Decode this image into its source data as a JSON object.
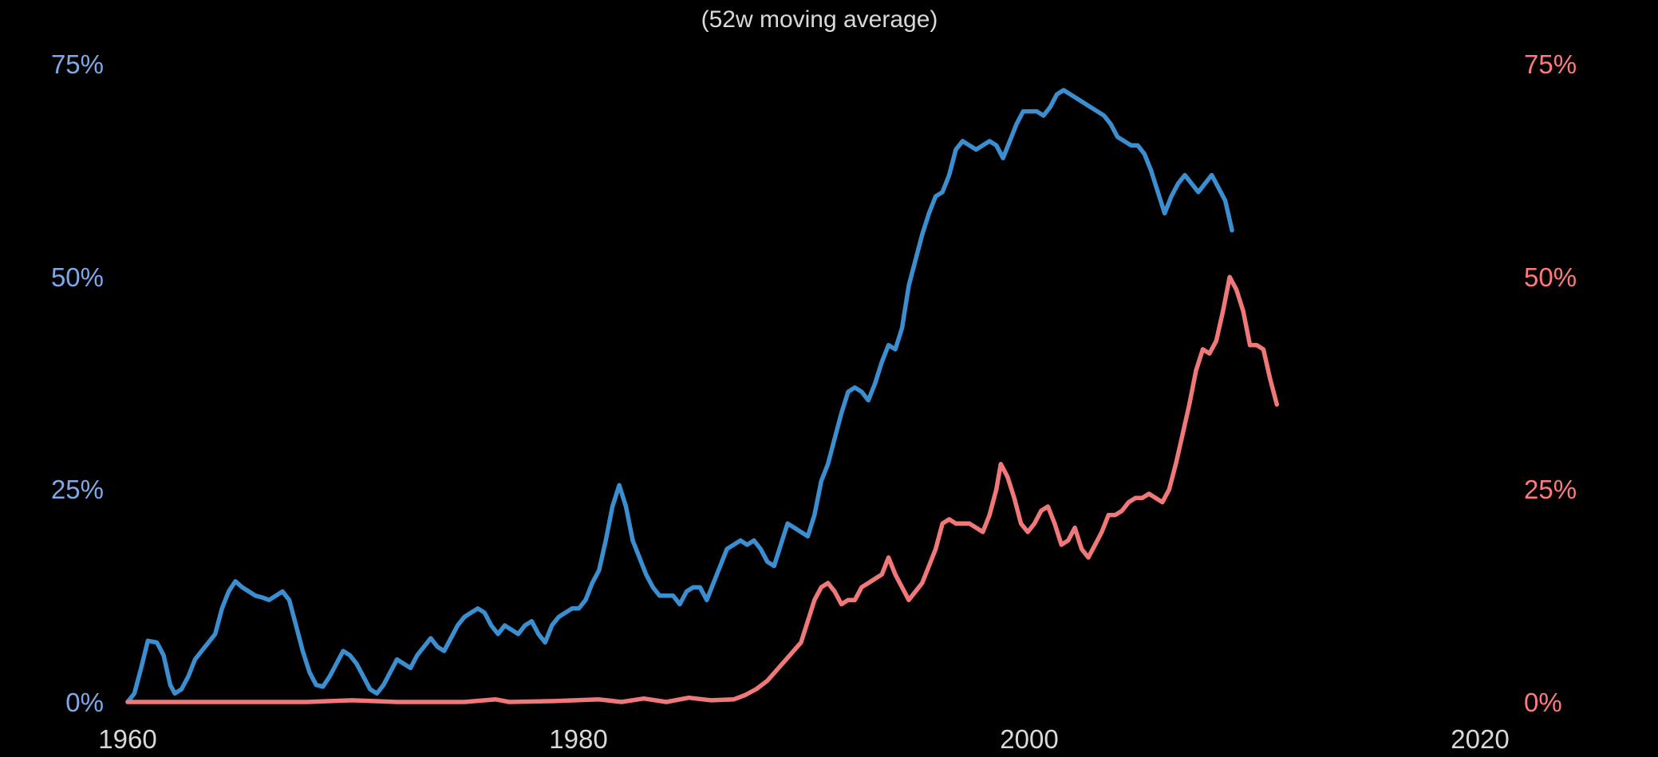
{
  "chart_data": {
    "type": "line",
    "title": "",
    "subtitle": "(52w moving average)",
    "xlabel": "",
    "ylabel": "",
    "xlim": [
      1960,
      2021
    ],
    "ylim": [
      0,
      75
    ],
    "grid": false,
    "legend": "none",
    "x_ticks": [
      {
        "value": 1960,
        "label": "1960"
      },
      {
        "value": 1980,
        "label": "1980"
      },
      {
        "value": 2000,
        "label": "2000"
      },
      {
        "value": 2020,
        "label": "2020"
      }
    ],
    "y_ticks_left": [
      {
        "value": 0,
        "label": "0%"
      },
      {
        "value": 25,
        "label": "25%"
      },
      {
        "value": 50,
        "label": "50%"
      },
      {
        "value": 75,
        "label": "75%"
      }
    ],
    "y_ticks_right": [
      {
        "value": 0,
        "label": "0%"
      },
      {
        "value": 25,
        "label": "25%"
      },
      {
        "value": 50,
        "label": "50%"
      },
      {
        "value": 75,
        "label": "75%"
      }
    ],
    "colors": {
      "blue_axis": "#7fa8e6",
      "red_axis": "#ff7a7a",
      "blue_line": "#3b8ed0",
      "red_line": "#f07878",
      "text": "#d9d9d9",
      "background": "#000000"
    },
    "series": [
      {
        "color": "#3b8ed0",
        "axis": "left",
        "points": [
          [
            1960.0,
            0
          ],
          [
            1960.3,
            1
          ],
          [
            1960.6,
            4
          ],
          [
            1960.9,
            7.2
          ],
          [
            1961.3,
            7
          ],
          [
            1961.6,
            5.5
          ],
          [
            1961.9,
            2
          ],
          [
            1962.1,
            1
          ],
          [
            1962.4,
            1.5
          ],
          [
            1962.7,
            3
          ],
          [
            1963.0,
            5
          ],
          [
            1963.3,
            6
          ],
          [
            1963.6,
            7
          ],
          [
            1963.9,
            8
          ],
          [
            1964.2,
            11
          ],
          [
            1964.5,
            13
          ],
          [
            1964.8,
            14.2
          ],
          [
            1965.1,
            13.5
          ],
          [
            1965.4,
            13
          ],
          [
            1965.7,
            12.5
          ],
          [
            1966.0,
            12.3
          ],
          [
            1966.3,
            12
          ],
          [
            1966.6,
            12.5
          ],
          [
            1966.9,
            13
          ],
          [
            1967.2,
            12
          ],
          [
            1967.5,
            9
          ],
          [
            1967.8,
            6
          ],
          [
            1968.1,
            3.5
          ],
          [
            1968.4,
            2
          ],
          [
            1968.7,
            1.8
          ],
          [
            1969.0,
            3
          ],
          [
            1969.3,
            4.5
          ],
          [
            1969.6,
            6
          ],
          [
            1969.9,
            5.5
          ],
          [
            1970.2,
            4.5
          ],
          [
            1970.5,
            3
          ],
          [
            1970.8,
            1.5
          ],
          [
            1971.1,
            1
          ],
          [
            1971.4,
            2
          ],
          [
            1971.7,
            3.5
          ],
          [
            1972.0,
            5
          ],
          [
            1972.3,
            4.5
          ],
          [
            1972.6,
            4
          ],
          [
            1972.9,
            5.5
          ],
          [
            1973.2,
            6.5
          ],
          [
            1973.5,
            7.5
          ],
          [
            1973.8,
            6.5
          ],
          [
            1974.1,
            6
          ],
          [
            1974.4,
            7.5
          ],
          [
            1974.7,
            9
          ],
          [
            1975.0,
            10
          ],
          [
            1975.3,
            10.5
          ],
          [
            1975.6,
            11
          ],
          [
            1975.9,
            10.5
          ],
          [
            1976.2,
            9
          ],
          [
            1976.5,
            8
          ],
          [
            1976.8,
            9
          ],
          [
            1977.1,
            8.5
          ],
          [
            1977.4,
            8
          ],
          [
            1977.7,
            9
          ],
          [
            1978.0,
            9.5
          ],
          [
            1978.3,
            8
          ],
          [
            1978.6,
            7
          ],
          [
            1978.9,
            9
          ],
          [
            1979.2,
            10
          ],
          [
            1979.5,
            10.5
          ],
          [
            1979.8,
            11
          ],
          [
            1980.1,
            11
          ],
          [
            1980.4,
            12
          ],
          [
            1980.7,
            14
          ],
          [
            1981.0,
            15.5
          ],
          [
            1981.3,
            19
          ],
          [
            1981.6,
            23
          ],
          [
            1981.9,
            25.5
          ],
          [
            1982.2,
            23
          ],
          [
            1982.5,
            19
          ],
          [
            1982.8,
            17
          ],
          [
            1983.1,
            15
          ],
          [
            1983.4,
            13.5
          ],
          [
            1983.7,
            12.5
          ],
          [
            1984.0,
            12.5
          ],
          [
            1984.3,
            12.5
          ],
          [
            1984.6,
            11.5
          ],
          [
            1984.9,
            13
          ],
          [
            1985.2,
            13.5
          ],
          [
            1985.5,
            13.5
          ],
          [
            1985.8,
            12
          ],
          [
            1986.1,
            14
          ],
          [
            1986.4,
            16
          ],
          [
            1986.7,
            18
          ],
          [
            1987.0,
            18.5
          ],
          [
            1987.3,
            19
          ],
          [
            1987.6,
            18.5
          ],
          [
            1987.9,
            19
          ],
          [
            1988.2,
            18
          ],
          [
            1988.5,
            16.5
          ],
          [
            1988.8,
            16
          ],
          [
            1989.1,
            18.5
          ],
          [
            1989.4,
            21
          ],
          [
            1989.7,
            20.5
          ],
          [
            1990.0,
            20
          ],
          [
            1990.3,
            19.5
          ],
          [
            1990.6,
            22
          ],
          [
            1990.9,
            26
          ],
          [
            1991.2,
            28
          ],
          [
            1991.5,
            31
          ],
          [
            1991.8,
            34
          ],
          [
            1992.1,
            36.5
          ],
          [
            1992.4,
            37
          ],
          [
            1992.7,
            36.5
          ],
          [
            1993.0,
            35.5
          ],
          [
            1993.3,
            37.5
          ],
          [
            1993.6,
            40
          ],
          [
            1993.9,
            42
          ],
          [
            1994.2,
            41.5
          ],
          [
            1994.5,
            44
          ],
          [
            1994.8,
            49
          ],
          [
            1995.1,
            52
          ],
          [
            1995.4,
            55
          ],
          [
            1995.7,
            57.5
          ],
          [
            1996.0,
            59.5
          ],
          [
            1996.3,
            60
          ],
          [
            1996.6,
            62
          ],
          [
            1996.9,
            65
          ],
          [
            1997.2,
            66
          ],
          [
            1997.5,
            65.5
          ],
          [
            1997.8,
            65
          ],
          [
            1998.1,
            65.5
          ],
          [
            1998.4,
            66
          ],
          [
            1998.7,
            65.5
          ],
          [
            1999.0,
            64
          ],
          [
            1999.3,
            66
          ],
          [
            1999.6,
            68
          ],
          [
            1999.9,
            69.5
          ],
          [
            2000.2,
            69.5
          ],
          [
            2000.5,
            69.5
          ],
          [
            2000.8,
            69
          ],
          [
            2001.1,
            70
          ],
          [
            2001.4,
            71.5
          ],
          [
            2001.7,
            72
          ],
          [
            2002.0,
            71.5
          ],
          [
            2002.3,
            71
          ],
          [
            2002.6,
            70.5
          ],
          [
            2002.9,
            70
          ],
          [
            2003.2,
            69.5
          ],
          [
            2003.5,
            69
          ],
          [
            2003.8,
            68
          ],
          [
            2004.1,
            66.5
          ],
          [
            2004.4,
            66
          ],
          [
            2004.7,
            65.5
          ],
          [
            2005.0,
            65.5
          ],
          [
            2005.3,
            64.5
          ],
          [
            2005.6,
            62.5
          ],
          [
            2005.9,
            60
          ],
          [
            2006.2,
            57.5
          ],
          [
            2006.5,
            59.5
          ],
          [
            2006.8,
            61
          ],
          [
            2007.1,
            62
          ],
          [
            2007.4,
            61
          ],
          [
            2007.7,
            60
          ],
          [
            2008.0,
            61
          ],
          [
            2008.3,
            62
          ],
          [
            2008.6,
            60.5
          ],
          [
            2008.9,
            59
          ],
          [
            2009.2,
            55.5
          ]
        ]
      },
      {
        "color": "#f07878",
        "axis": "right",
        "points": [
          [
            1960.0,
            0
          ],
          [
            1964.0,
            0
          ],
          [
            1968.0,
            0
          ],
          [
            1970.0,
            0.2
          ],
          [
            1972.0,
            0
          ],
          [
            1975.0,
            0
          ],
          [
            1976.4,
            0.3
          ],
          [
            1977.0,
            0
          ],
          [
            1979.0,
            0.1
          ],
          [
            1981.0,
            0.3
          ],
          [
            1982.0,
            0
          ],
          [
            1983.0,
            0.4
          ],
          [
            1984.0,
            0
          ],
          [
            1985.0,
            0.5
          ],
          [
            1986.0,
            0.2
          ],
          [
            1987.0,
            0.3
          ],
          [
            1987.5,
            0.8
          ],
          [
            1988.0,
            1.5
          ],
          [
            1988.5,
            2.5
          ],
          [
            1989.0,
            4
          ],
          [
            1989.5,
            5.5
          ],
          [
            1990.0,
            7
          ],
          [
            1990.3,
            9.5
          ],
          [
            1990.6,
            12
          ],
          [
            1990.9,
            13.5
          ],
          [
            1991.2,
            14
          ],
          [
            1991.5,
            13
          ],
          [
            1991.8,
            11.5
          ],
          [
            1992.1,
            12
          ],
          [
            1992.4,
            12
          ],
          [
            1992.7,
            13.5
          ],
          [
            1993.0,
            14
          ],
          [
            1993.3,
            14.5
          ],
          [
            1993.6,
            15
          ],
          [
            1993.9,
            17
          ],
          [
            1994.2,
            15
          ],
          [
            1994.5,
            13.5
          ],
          [
            1994.8,
            12
          ],
          [
            1995.1,
            13
          ],
          [
            1995.4,
            14
          ],
          [
            1995.7,
            16
          ],
          [
            1996.0,
            18
          ],
          [
            1996.3,
            21
          ],
          [
            1996.6,
            21.5
          ],
          [
            1996.9,
            21
          ],
          [
            1997.2,
            21
          ],
          [
            1997.5,
            21
          ],
          [
            1997.8,
            20.5
          ],
          [
            1998.1,
            20
          ],
          [
            1998.4,
            22
          ],
          [
            1998.7,
            25
          ],
          [
            1998.9,
            28
          ],
          [
            1999.2,
            26.5
          ],
          [
            1999.5,
            24
          ],
          [
            1999.8,
            21
          ],
          [
            2000.1,
            20
          ],
          [
            2000.4,
            21
          ],
          [
            2000.7,
            22.5
          ],
          [
            2001.0,
            23
          ],
          [
            2001.3,
            21
          ],
          [
            2001.6,
            18.5
          ],
          [
            2001.9,
            19
          ],
          [
            2002.2,
            20.5
          ],
          [
            2002.5,
            18
          ],
          [
            2002.8,
            17
          ],
          [
            2003.1,
            18.5
          ],
          [
            2003.4,
            20
          ],
          [
            2003.7,
            22
          ],
          [
            2004.0,
            22
          ],
          [
            2004.3,
            22.5
          ],
          [
            2004.6,
            23.5
          ],
          [
            2004.9,
            24
          ],
          [
            2005.2,
            24
          ],
          [
            2005.5,
            24.5
          ],
          [
            2005.8,
            24
          ],
          [
            2006.1,
            23.5
          ],
          [
            2006.4,
            25
          ],
          [
            2006.7,
            28
          ],
          [
            2007.0,
            31.5
          ],
          [
            2007.3,
            35
          ],
          [
            2007.6,
            39
          ],
          [
            2007.9,
            41.5
          ],
          [
            2008.2,
            41
          ],
          [
            2008.5,
            42.5
          ],
          [
            2008.8,
            46
          ],
          [
            2009.1,
            50
          ],
          [
            2009.4,
            48.5
          ],
          [
            2009.7,
            46
          ],
          [
            2010.0,
            42
          ],
          [
            2010.3,
            42
          ],
          [
            2010.6,
            41.5
          ],
          [
            2010.9,
            38
          ],
          [
            2011.2,
            35
          ]
        ]
      }
    ]
  }
}
